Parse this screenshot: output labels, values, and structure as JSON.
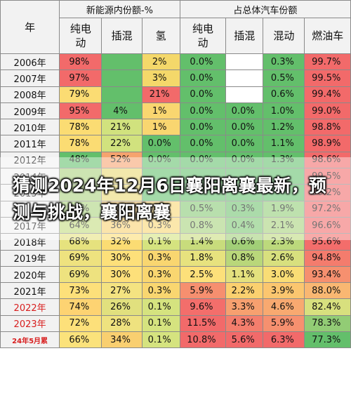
{
  "chart_data": {
    "type": "table",
    "header": {
      "year_label": "年",
      "group_nev": "新能源内份额-%",
      "group_total": "占总体汽车份额"
    },
    "columns": [
      "纯电\n动",
      "插混",
      "氢",
      "纯电\n动",
      "插混",
      "混动",
      "燃油车"
    ],
    "rows": [
      {
        "year": "2006年",
        "cells": [
          "98%",
          "",
          "2%",
          "0.0%",
          "",
          "0.3%",
          "99.7%"
        ]
      },
      {
        "year": "2007年",
        "cells": [
          "97%",
          "",
          "3%",
          "0.0%",
          "",
          "0.5%",
          "99.5%"
        ]
      },
      {
        "year": "2008年",
        "cells": [
          "79%",
          "",
          "21%",
          "0.0%",
          "",
          "0.6%",
          "99.4%"
        ]
      },
      {
        "year": "2009年",
        "cells": [
          "95%",
          "4%",
          "1%",
          "0.0%",
          "0.0%",
          "1.0%",
          "99.0%"
        ]
      },
      {
        "year": "2010年",
        "cells": [
          "78%",
          "21%",
          "1%",
          "0.0%",
          "0.0%",
          "1.2%",
          "98.8%"
        ]
      },
      {
        "year": "2011年",
        "cells": [
          "78%",
          "22%",
          "0.0%",
          "0.0%",
          "0.0%",
          "1.1%",
          "98.9%"
        ]
      },
      {
        "year": "2012年",
        "cells": [
          "48%",
          "52%",
          "0.0%",
          "0.0%",
          "0.0%",
          "1.3%",
          "98.6%"
        ]
      },
      {
        "year": "2014年",
        "cells": [
          "",
          "",
          "",
          "",
          "",
          "",
          "99.5%"
        ]
      },
      {
        "year": "2015年",
        "cells": [
          "",
          "",
          "",
          "",
          "",
          "",
          "99.2%"
        ]
      },
      {
        "year": "2016年",
        "cells": [
          "61%",
          "38%",
          "0.3%",
          "0.5%",
          "0.3%",
          "1.9%",
          "97.2%"
        ]
      },
      {
        "year": "2017年",
        "cells": [
          "64%",
          "36%",
          "0.3%",
          "0.8%",
          "0.4%",
          "2.1%",
          "96.6%"
        ]
      },
      {
        "year": "2018年",
        "cells": [
          "68%",
          "32%",
          "0.1%",
          "1.4%",
          "0.6%",
          "2.3%",
          "95.6%"
        ]
      },
      {
        "year": "2019年",
        "cells": [
          "69%",
          "30%",
          "0.3%",
          "1.8%",
          "0.8%",
          "2.6%",
          "94.8%"
        ]
      },
      {
        "year": "2020年",
        "cells": [
          "69%",
          "30%",
          "0.3%",
          "2.5%",
          "1.1%",
          "3.0%",
          "93.4%"
        ]
      },
      {
        "year": "2021年",
        "cells": [
          "73%",
          "27%",
          "0.3%",
          "5.9%",
          "2.2%",
          "3.9%",
          "88.0%"
        ]
      },
      {
        "year": "2022年",
        "cells": [
          "74%",
          "26%",
          "0.1%",
          "9.6%",
          "3.3%",
          "4.6%",
          "82.4%"
        ]
      },
      {
        "year": "2023年",
        "cells": [
          "72%",
          "28%",
          "0.1%",
          "11.5%",
          "4.3%",
          "5.9%",
          "78.3%"
        ]
      },
      {
        "year": "24年5月累",
        "cells": [
          "66%",
          "34%",
          "0.1%",
          "10.8%",
          "5.6%",
          "6.3%",
          "77.3%"
        ]
      }
    ],
    "year_styles": {
      "2022年": "red",
      "2023年": "red",
      "24年5月累": "tiny"
    },
    "cell_colors": [
      [
        "#f26a6a",
        "#63bf6b",
        "#f4d86a",
        "#63bf6b",
        "#ffffff",
        "#63bf6b",
        "#f26a6a"
      ],
      [
        "#f26a6a",
        "#63bf6b",
        "#f4d86a",
        "#63bf6b",
        "#ffffff",
        "#63bf6b",
        "#f26a6a"
      ],
      [
        "#fbdc73",
        "#63bf6b",
        "#f26a6a",
        "#63bf6b",
        "#ffffff",
        "#63bf6b",
        "#f26a6a"
      ],
      [
        "#f26a6a",
        "#63bf6b",
        "#f9d670",
        "#63bf6b",
        "#63bf6b",
        "#63bf6b",
        "#f26a6a"
      ],
      [
        "#fbdc73",
        "#d1e27e",
        "#f9d670",
        "#63bf6b",
        "#63bf6b",
        "#63bf6b",
        "#f26a6a"
      ],
      [
        "#fbdc73",
        "#d1e27e",
        "#63bf6b",
        "#63bf6b",
        "#63bf6b",
        "#63bf6b",
        "#f26a6a"
      ],
      [
        "#63bf6b",
        "#f6a36e",
        "#63bf6b",
        "#63bf6b",
        "#63bf6b",
        "#63bf6b",
        "#f26a6a"
      ],
      [
        "#aad07a",
        "#e9d870",
        "#63bf6b",
        "#63bf6b",
        "#63bf6b",
        "#63bf6b",
        "#f26a6a"
      ],
      [
        "#aad07a",
        "#e9d870",
        "#63bf6b",
        "#63bf6b",
        "#63bf6b",
        "#63bf6b",
        "#f26a6a"
      ],
      [
        "#a9d27a",
        "#f6c96d",
        "#f9d670",
        "#86c873",
        "#6fc26d",
        "#8fcb74",
        "#f26a6a"
      ],
      [
        "#c2db7c",
        "#f8d06e",
        "#f9d670",
        "#a4d079",
        "#7bc670",
        "#a6d179",
        "#f26a6a"
      ],
      [
        "#e6e27e",
        "#fbdc73",
        "#d5e37f",
        "#c8dc7c",
        "#a1cf77",
        "#bcd97c",
        "#f36d6b"
      ],
      [
        "#eee27f",
        "#fde07a",
        "#f9d670",
        "#e7e27e",
        "#b9d77a",
        "#d8e07e",
        "#f47c6d"
      ],
      [
        "#eee27f",
        "#fde07a",
        "#f9d670",
        "#fde07a",
        "#e4e17e",
        "#f9dd75",
        "#f6906f"
      ],
      [
        "#fde07a",
        "#f4e381",
        "#f9d670",
        "#f68f6f",
        "#fbd06f",
        "#fbc66f",
        "#f9b772"
      ],
      [
        "#fdd372",
        "#e1e07e",
        "#d5e37f",
        "#f36e6b",
        "#f7a06f",
        "#f8a970",
        "#d8e07e"
      ],
      [
        "#fde07a",
        "#eee27f",
        "#d5e37f",
        "#f26a6a",
        "#f47e6d",
        "#f6906f",
        "#92cc75"
      ],
      [
        "#fbe27b",
        "#f9cf70",
        "#d5e37f",
        "#f26a6a",
        "#f26a6a",
        "#f26a6a",
        "#63bf6b"
      ]
    ]
  },
  "overlay": {
    "headline": "猜测2024年12月6日襄阳离襄最新，预测与挑战，襄阳离襄"
  }
}
